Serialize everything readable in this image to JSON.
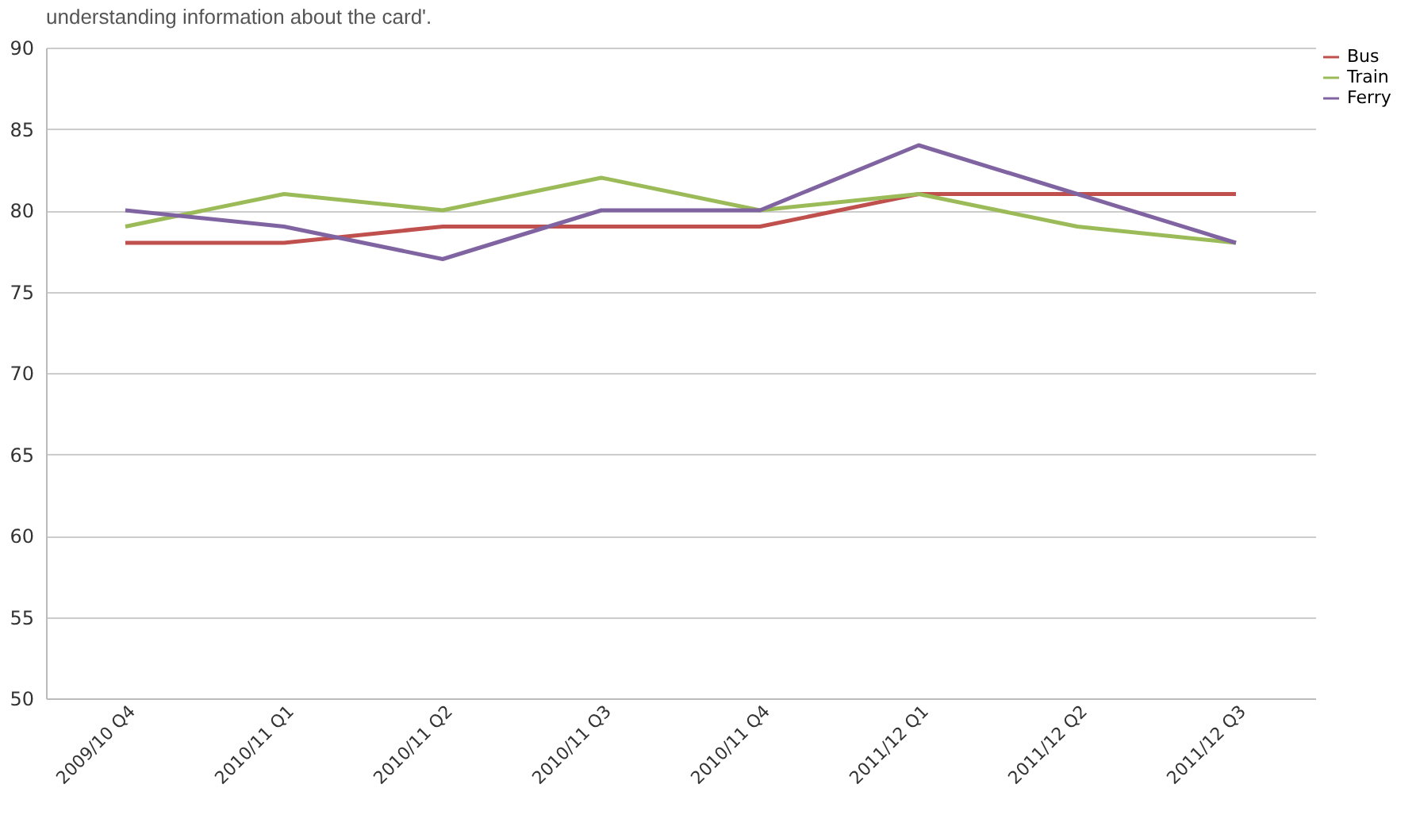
{
  "chart_data": {
    "type": "line",
    "annotations": [
      "understanding information about the card'."
    ],
    "categories": [
      "2009/10 Q4",
      "2010/11 Q1",
      "2010/11 Q2",
      "2010/11 Q3",
      "2010/11 Q4",
      "2011/12 Q1",
      "2011/12 Q2",
      "2011/12 Q3"
    ],
    "series": [
      {
        "name": "Bus",
        "color": "#c0504d",
        "values": [
          78,
          78,
          79,
          79,
          79,
          81,
          81,
          81
        ]
      },
      {
        "name": "Train",
        "color": "#9bbb59",
        "values": [
          79,
          81,
          80,
          82,
          80,
          81,
          79,
          78
        ]
      },
      {
        "name": "Ferry",
        "color": "#8064a2",
        "values": [
          80,
          79,
          77,
          80,
          80,
          84,
          81,
          78
        ]
      }
    ],
    "ylim": [
      50,
      90
    ],
    "yticks": [
      50,
      55,
      60,
      65,
      70,
      75,
      80,
      85,
      90
    ],
    "grid": "y",
    "legend": "top right"
  }
}
